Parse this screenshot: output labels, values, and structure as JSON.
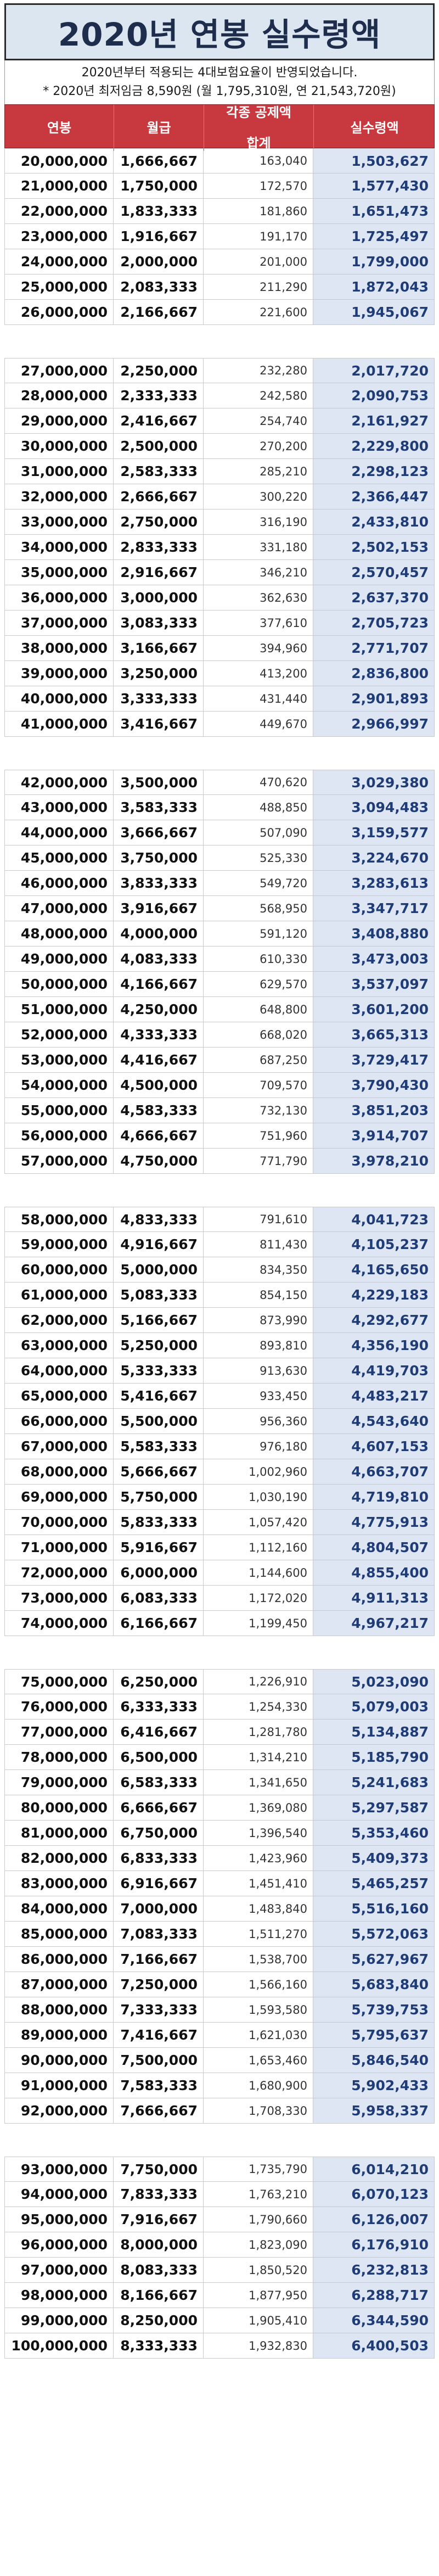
{
  "title": "2020년 연봉 실수령액",
  "notes": [
    "2020년부터 적용되는 4대보험요율이 반영되었습니다.",
    "* 2020년 최저임금 8,590원 (월 1,795,310원, 연 21,543,720원)"
  ],
  "header": {
    "col1": "연봉",
    "col2": "월급",
    "col3": "각종 공제액\n합계",
    "col4": "실수령액"
  },
  "colors": {
    "header_bg": "#c7393f",
    "net_bg": "#dde6f2",
    "title_bg": "#dce6f1"
  },
  "sections": [
    [
      [
        "20,000,000",
        "1,666,667",
        "163,040",
        "1,503,627"
      ],
      [
        "21,000,000",
        "1,750,000",
        "172,570",
        "1,577,430"
      ],
      [
        "22,000,000",
        "1,833,333",
        "181,860",
        "1,651,473"
      ],
      [
        "23,000,000",
        "1,916,667",
        "191,170",
        "1,725,497"
      ],
      [
        "24,000,000",
        "2,000,000",
        "201,000",
        "1,799,000"
      ],
      [
        "25,000,000",
        "2,083,333",
        "211,290",
        "1,872,043"
      ],
      [
        "26,000,000",
        "2,166,667",
        "221,600",
        "1,945,067"
      ]
    ],
    [
      [
        "27,000,000",
        "2,250,000",
        "232,280",
        "2,017,720"
      ],
      [
        "28,000,000",
        "2,333,333",
        "242,580",
        "2,090,753"
      ],
      [
        "29,000,000",
        "2,416,667",
        "254,740",
        "2,161,927"
      ],
      [
        "30,000,000",
        "2,500,000",
        "270,200",
        "2,229,800"
      ],
      [
        "31,000,000",
        "2,583,333",
        "285,210",
        "2,298,123"
      ],
      [
        "32,000,000",
        "2,666,667",
        "300,220",
        "2,366,447"
      ],
      [
        "33,000,000",
        "2,750,000",
        "316,190",
        "2,433,810"
      ],
      [
        "34,000,000",
        "2,833,333",
        "331,180",
        "2,502,153"
      ],
      [
        "35,000,000",
        "2,916,667",
        "346,210",
        "2,570,457"
      ],
      [
        "36,000,000",
        "3,000,000",
        "362,630",
        "2,637,370"
      ],
      [
        "37,000,000",
        "3,083,333",
        "377,610",
        "2,705,723"
      ],
      [
        "38,000,000",
        "3,166,667",
        "394,960",
        "2,771,707"
      ],
      [
        "39,000,000",
        "3,250,000",
        "413,200",
        "2,836,800"
      ],
      [
        "40,000,000",
        "3,333,333",
        "431,440",
        "2,901,893"
      ],
      [
        "41,000,000",
        "3,416,667",
        "449,670",
        "2,966,997"
      ]
    ],
    [
      [
        "42,000,000",
        "3,500,000",
        "470,620",
        "3,029,380"
      ],
      [
        "43,000,000",
        "3,583,333",
        "488,850",
        "3,094,483"
      ],
      [
        "44,000,000",
        "3,666,667",
        "507,090",
        "3,159,577"
      ],
      [
        "45,000,000",
        "3,750,000",
        "525,330",
        "3,224,670"
      ],
      [
        "46,000,000",
        "3,833,333",
        "549,720",
        "3,283,613"
      ],
      [
        "47,000,000",
        "3,916,667",
        "568,950",
        "3,347,717"
      ],
      [
        "48,000,000",
        "4,000,000",
        "591,120",
        "3,408,880"
      ],
      [
        "49,000,000",
        "4,083,333",
        "610,330",
        "3,473,003"
      ],
      [
        "50,000,000",
        "4,166,667",
        "629,570",
        "3,537,097"
      ],
      [
        "51,000,000",
        "4,250,000",
        "648,800",
        "3,601,200"
      ],
      [
        "52,000,000",
        "4,333,333",
        "668,020",
        "3,665,313"
      ],
      [
        "53,000,000",
        "4,416,667",
        "687,250",
        "3,729,417"
      ],
      [
        "54,000,000",
        "4,500,000",
        "709,570",
        "3,790,430"
      ],
      [
        "55,000,000",
        "4,583,333",
        "732,130",
        "3,851,203"
      ],
      [
        "56,000,000",
        "4,666,667",
        "751,960",
        "3,914,707"
      ],
      [
        "57,000,000",
        "4,750,000",
        "771,790",
        "3,978,210"
      ]
    ],
    [
      [
        "58,000,000",
        "4,833,333",
        "791,610",
        "4,041,723"
      ],
      [
        "59,000,000",
        "4,916,667",
        "811,430",
        "4,105,237"
      ],
      [
        "60,000,000",
        "5,000,000",
        "834,350",
        "4,165,650"
      ],
      [
        "61,000,000",
        "5,083,333",
        "854,150",
        "4,229,183"
      ],
      [
        "62,000,000",
        "5,166,667",
        "873,990",
        "4,292,677"
      ],
      [
        "63,000,000",
        "5,250,000",
        "893,810",
        "4,356,190"
      ],
      [
        "64,000,000",
        "5,333,333",
        "913,630",
        "4,419,703"
      ],
      [
        "65,000,000",
        "5,416,667",
        "933,450",
        "4,483,217"
      ],
      [
        "66,000,000",
        "5,500,000",
        "956,360",
        "4,543,640"
      ],
      [
        "67,000,000",
        "5,583,333",
        "976,180",
        "4,607,153"
      ],
      [
        "68,000,000",
        "5,666,667",
        "1,002,960",
        "4,663,707"
      ],
      [
        "69,000,000",
        "5,750,000",
        "1,030,190",
        "4,719,810"
      ],
      [
        "70,000,000",
        "5,833,333",
        "1,057,420",
        "4,775,913"
      ],
      [
        "71,000,000",
        "5,916,667",
        "1,112,160",
        "4,804,507"
      ],
      [
        "72,000,000",
        "6,000,000",
        "1,144,600",
        "4,855,400"
      ],
      [
        "73,000,000",
        "6,083,333",
        "1,172,020",
        "4,911,313"
      ],
      [
        "74,000,000",
        "6,166,667",
        "1,199,450",
        "4,967,217"
      ]
    ],
    [
      [
        "75,000,000",
        "6,250,000",
        "1,226,910",
        "5,023,090"
      ],
      [
        "76,000,000",
        "6,333,333",
        "1,254,330",
        "5,079,003"
      ],
      [
        "77,000,000",
        "6,416,667",
        "1,281,780",
        "5,134,887"
      ],
      [
        "78,000,000",
        "6,500,000",
        "1,314,210",
        "5,185,790"
      ],
      [
        "79,000,000",
        "6,583,333",
        "1,341,650",
        "5,241,683"
      ],
      [
        "80,000,000",
        "6,666,667",
        "1,369,080",
        "5,297,587"
      ],
      [
        "81,000,000",
        "6,750,000",
        "1,396,540",
        "5,353,460"
      ],
      [
        "82,000,000",
        "6,833,333",
        "1,423,960",
        "5,409,373"
      ],
      [
        "83,000,000",
        "6,916,667",
        "1,451,410",
        "5,465,257"
      ],
      [
        "84,000,000",
        "7,000,000",
        "1,483,840",
        "5,516,160"
      ],
      [
        "85,000,000",
        "7,083,333",
        "1,511,270",
        "5,572,063"
      ],
      [
        "86,000,000",
        "7,166,667",
        "1,538,700",
        "5,627,967"
      ],
      [
        "87,000,000",
        "7,250,000",
        "1,566,160",
        "5,683,840"
      ],
      [
        "88,000,000",
        "7,333,333",
        "1,593,580",
        "5,739,753"
      ],
      [
        "89,000,000",
        "7,416,667",
        "1,621,030",
        "5,795,637"
      ],
      [
        "90,000,000",
        "7,500,000",
        "1,653,460",
        "5,846,540"
      ],
      [
        "91,000,000",
        "7,583,333",
        "1,680,900",
        "5,902,433"
      ],
      [
        "92,000,000",
        "7,666,667",
        "1,708,330",
        "5,958,337"
      ]
    ],
    [
      [
        "93,000,000",
        "7,750,000",
        "1,735,790",
        "6,014,210"
      ],
      [
        "94,000,000",
        "7,833,333",
        "1,763,210",
        "6,070,123"
      ],
      [
        "95,000,000",
        "7,916,667",
        "1,790,660",
        "6,126,007"
      ],
      [
        "96,000,000",
        "8,000,000",
        "1,823,090",
        "6,176,910"
      ],
      [
        "97,000,000",
        "8,083,333",
        "1,850,520",
        "6,232,813"
      ],
      [
        "98,000,000",
        "8,166,667",
        "1,877,950",
        "6,288,717"
      ],
      [
        "99,000,000",
        "8,250,000",
        "1,905,410",
        "6,344,590"
      ],
      [
        "100,000,000",
        "8,333,333",
        "1,932,830",
        "6,400,503"
      ]
    ]
  ]
}
